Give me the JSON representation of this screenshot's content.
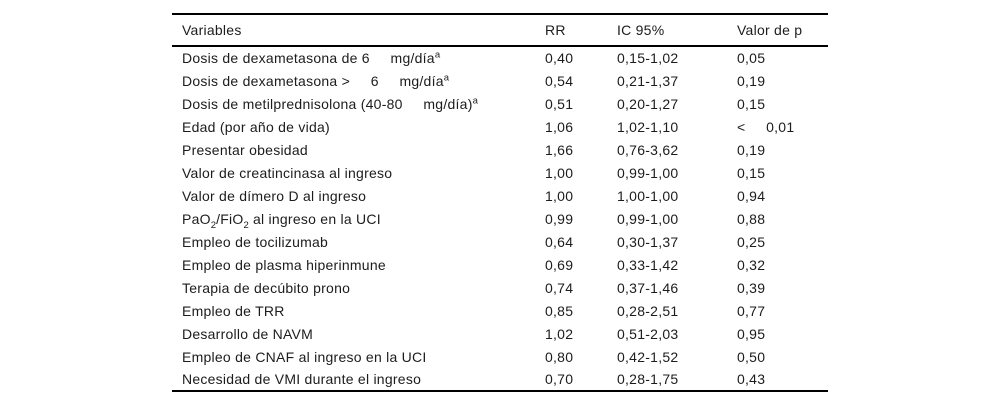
{
  "colors": {
    "background": "#ffffff",
    "text": "#1c1c1c",
    "rule": "#000000"
  },
  "table": {
    "columns": [
      {
        "key": "variable",
        "label": "Variables"
      },
      {
        "key": "rr",
        "label": "RR"
      },
      {
        "key": "ic",
        "label": "IC 95%"
      },
      {
        "key": "p",
        "label": "Valor de p"
      }
    ],
    "footnote_marker": "a",
    "rows": [
      {
        "variable": [
          {
            "t": "Dosis de dexametasona de 6     mg/día"
          },
          {
            "t": "a",
            "sup": true
          }
        ],
        "rr": "0,40",
        "ic": "0,15-1,02",
        "p": "0,05"
      },
      {
        "variable": [
          {
            "t": "Dosis de dexametasona >     6     mg/día"
          },
          {
            "t": "a",
            "sup": true
          }
        ],
        "rr": "0,54",
        "ic": "0,21-1,37",
        "p": "0,19"
      },
      {
        "variable": [
          {
            "t": "Dosis de metilprednisolona (40-80     mg/día)"
          },
          {
            "t": "a",
            "sup": true
          }
        ],
        "rr": "0,51",
        "ic": "0,20-1,27",
        "p": "0,15"
      },
      {
        "variable": [
          {
            "t": "Edad (por año de vida)"
          }
        ],
        "rr": "1,06",
        "ic": "1,02-1,10",
        "p": "<     0,01"
      },
      {
        "variable": [
          {
            "t": "Presentar obesidad"
          }
        ],
        "rr": "1,66",
        "ic": "0,76-3,62",
        "p": "0,19"
      },
      {
        "variable": [
          {
            "t": "Valor de creatincinasa al ingreso"
          }
        ],
        "rr": "1,00",
        "ic": "0,99-1,00",
        "p": "0,15"
      },
      {
        "variable": [
          {
            "t": "Valor de dímero D al ingreso"
          }
        ],
        "rr": "1,00",
        "ic": "1,00-1,00",
        "p": "0,94"
      },
      {
        "variable": [
          {
            "t": "PaO"
          },
          {
            "t": "2",
            "sub": true
          },
          {
            "t": "/FiO"
          },
          {
            "t": "2",
            "sub": true
          },
          {
            "t": " al ingreso en la UCI"
          }
        ],
        "rr": "0,99",
        "ic": "0,99-1,00",
        "p": "0,88"
      },
      {
        "variable": [
          {
            "t": "Empleo de tocilizumab"
          }
        ],
        "rr": "0,64",
        "ic": "0,30-1,37",
        "p": "0,25"
      },
      {
        "variable": [
          {
            "t": "Empleo de plasma hiperinmune"
          }
        ],
        "rr": "0,69",
        "ic": "0,33-1,42",
        "p": "0,32"
      },
      {
        "variable": [
          {
            "t": "Terapia de decúbito prono"
          }
        ],
        "rr": "0,74",
        "ic": "0,37-1,46",
        "p": "0,39"
      },
      {
        "variable": [
          {
            "t": "Empleo de TRR"
          }
        ],
        "rr": "0,85",
        "ic": "0,28-2,51",
        "p": "0,77"
      },
      {
        "variable": [
          {
            "t": "Desarrollo de NAVM"
          }
        ],
        "rr": "1,02",
        "ic": "0,51-2,03",
        "p": "0,95"
      },
      {
        "variable": [
          {
            "t": "Empleo de CNAF al ingreso en la UCI"
          }
        ],
        "rr": "0,80",
        "ic": "0,42-1,52",
        "p": "0,50"
      },
      {
        "variable": [
          {
            "t": "Necesidad de VMI durante el ingreso"
          }
        ],
        "rr": "0,70",
        "ic": "0,28-1,75",
        "p": "0,43"
      }
    ]
  }
}
